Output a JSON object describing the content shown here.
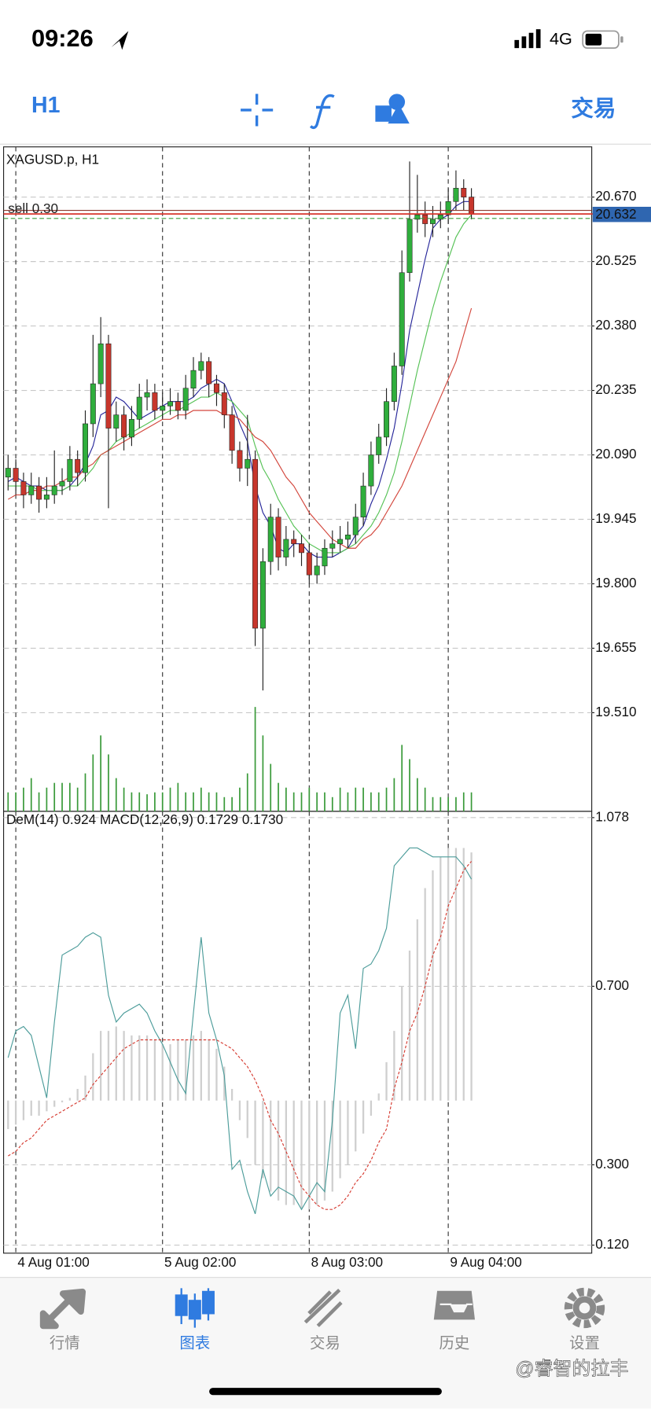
{
  "status_bar": {
    "time": "09:26",
    "network": "4G"
  },
  "toolbar": {
    "timeframe": "H1",
    "trade": "交易"
  },
  "chart_data": [
    {
      "type": "candlestick",
      "title": "XAGUSD.p, H1",
      "categories": [
        null,
        "4 Aug 01:00",
        null,
        null,
        null,
        null,
        null,
        null,
        null,
        null,
        null,
        null,
        null,
        null,
        null,
        null,
        null,
        null,
        null,
        null,
        "5 Aug 02:00",
        null,
        null,
        null,
        null,
        null,
        null,
        null,
        null,
        null,
        null,
        null,
        null,
        null,
        null,
        null,
        null,
        null,
        null,
        "8 Aug 03:00",
        null,
        null,
        null,
        null,
        null,
        null,
        null,
        null,
        null,
        null,
        null,
        null,
        null,
        null,
        null,
        null,
        null,
        "9 Aug 04:00",
        null,
        null,
        null
      ],
      "open": [
        20.04,
        20.06,
        20.03,
        20.0,
        20.02,
        19.99,
        20.0,
        20.02,
        20.03,
        20.08,
        20.05,
        20.16,
        20.25,
        20.34,
        20.15,
        20.18,
        20.13,
        20.17,
        20.22,
        20.23,
        20.19,
        20.2,
        20.21,
        20.19,
        20.24,
        20.28,
        20.3,
        20.25,
        20.23,
        20.18,
        20.1,
        20.06,
        20.08,
        19.7,
        19.85,
        19.95,
        19.86,
        19.9,
        19.89,
        19.87,
        19.82,
        19.84,
        19.88,
        19.89,
        19.9,
        19.91,
        19.95,
        20.02,
        20.09,
        20.13,
        20.21,
        20.29,
        20.5,
        20.62,
        20.63,
        20.61,
        20.62,
        20.63,
        20.66,
        20.69,
        20.67
      ],
      "high": [
        20.09,
        20.08,
        20.05,
        20.05,
        20.04,
        20.04,
        20.1,
        20.06,
        20.11,
        20.1,
        20.19,
        20.36,
        20.4,
        20.36,
        20.21,
        20.2,
        20.2,
        20.25,
        20.26,
        20.25,
        20.23,
        20.24,
        20.23,
        20.27,
        20.31,
        20.32,
        20.31,
        20.27,
        20.25,
        20.2,
        20.12,
        20.18,
        20.1,
        19.88,
        19.98,
        19.97,
        19.93,
        19.92,
        19.91,
        19.89,
        19.87,
        19.9,
        19.92,
        19.93,
        19.94,
        19.98,
        20.05,
        20.12,
        20.16,
        20.24,
        20.32,
        20.55,
        20.75,
        20.72,
        20.66,
        20.65,
        20.66,
        20.69,
        20.73,
        20.71,
        20.69
      ],
      "low": [
        20.01,
        20.0,
        19.97,
        19.98,
        19.96,
        19.97,
        19.98,
        20.0,
        20.01,
        20.02,
        20.03,
        20.13,
        20.22,
        19.97,
        20.12,
        20.1,
        20.11,
        20.15,
        20.19,
        20.17,
        20.17,
        20.18,
        20.17,
        20.17,
        20.22,
        20.26,
        20.22,
        20.2,
        20.15,
        20.07,
        20.03,
        20.02,
        19.66,
        19.56,
        19.82,
        19.83,
        19.84,
        19.86,
        19.84,
        19.8,
        19.8,
        19.82,
        19.86,
        19.87,
        19.88,
        19.89,
        19.93,
        20.0,
        20.07,
        20.11,
        20.19,
        20.27,
        20.48,
        20.59,
        20.58,
        20.58,
        20.6,
        20.61,
        20.64,
        20.64,
        20.62
      ],
      "close": [
        20.06,
        20.03,
        20.0,
        20.02,
        19.99,
        20.0,
        20.02,
        20.03,
        20.08,
        20.05,
        20.16,
        20.25,
        20.34,
        20.15,
        20.18,
        20.13,
        20.17,
        20.22,
        20.23,
        20.19,
        20.2,
        20.21,
        20.19,
        20.24,
        20.28,
        20.3,
        20.25,
        20.23,
        20.18,
        20.1,
        20.06,
        20.08,
        19.7,
        19.85,
        19.95,
        19.86,
        19.9,
        19.89,
        19.87,
        19.82,
        19.84,
        19.88,
        19.89,
        19.9,
        19.91,
        19.95,
        20.02,
        20.09,
        20.13,
        20.21,
        20.29,
        20.5,
        20.62,
        20.63,
        20.61,
        20.62,
        20.63,
        20.66,
        20.69,
        20.67,
        20.632
      ],
      "up_color": "#2fae3c",
      "down_color": "#c7362c",
      "wick_color": "#222222",
      "overlays": [
        {
          "color": "#26269a",
          "values": [
            20.03,
            20.04,
            20.03,
            20.02,
            20.02,
            20.01,
            20.01,
            20.01,
            20.02,
            20.04,
            20.07,
            20.11,
            20.18,
            20.19,
            20.22,
            20.21,
            20.19,
            20.17,
            20.18,
            20.19,
            20.2,
            20.21,
            20.21,
            20.21,
            20.22,
            20.24,
            20.25,
            20.26,
            20.25,
            20.21,
            20.16,
            20.12,
            20.02,
            19.96,
            19.93,
            19.88,
            19.87,
            19.89,
            19.89,
            19.87,
            19.86,
            19.86,
            19.86,
            19.87,
            19.88,
            19.91,
            19.93,
            19.98,
            20.02,
            20.08,
            20.15,
            20.25,
            20.37,
            20.45,
            20.53,
            20.6,
            20.62,
            20.63,
            20.65,
            20.66,
            20.66
          ]
        },
        {
          "color": "#56c256",
          "values": [
            20.02,
            20.02,
            20.02,
            20.02,
            20.01,
            20.01,
            20.01,
            20.01,
            20.02,
            20.02,
            20.04,
            20.06,
            20.09,
            20.1,
            20.12,
            20.13,
            20.14,
            20.15,
            20.16,
            20.17,
            20.18,
            20.19,
            20.19,
            20.2,
            20.21,
            20.22,
            20.22,
            20.23,
            20.22,
            20.21,
            20.19,
            20.17,
            20.11,
            20.06,
            20.03,
            19.99,
            19.96,
            19.93,
            19.91,
            19.89,
            19.88,
            19.87,
            19.87,
            19.87,
            19.88,
            19.89,
            19.91,
            19.93,
            19.96,
            20.0,
            20.05,
            20.12,
            20.2,
            20.28,
            20.35,
            20.42,
            20.48,
            20.53,
            20.58,
            20.61,
            20.63
          ]
        },
        {
          "color": "#d3463c",
          "values": [
            19.99,
            20.0,
            20.0,
            20.01,
            20.01,
            20.02,
            20.02,
            20.03,
            20.04,
            20.04,
            20.06,
            20.07,
            20.09,
            20.1,
            20.11,
            20.12,
            20.13,
            20.14,
            20.15,
            20.16,
            20.17,
            20.17,
            20.18,
            20.18,
            20.19,
            20.19,
            20.19,
            20.19,
            20.18,
            20.18,
            20.17,
            20.15,
            20.13,
            20.12,
            20.1,
            20.07,
            20.04,
            20.02,
            19.99,
            19.96,
            19.94,
            19.92,
            19.9,
            19.89,
            19.88,
            19.88,
            19.9,
            19.91,
            19.93,
            19.96,
            19.99,
            20.02,
            20.06,
            20.1,
            20.14,
            20.18,
            20.22,
            20.26,
            20.3,
            20.36,
            20.42
          ]
        }
      ],
      "volume": {
        "color": "#3a9a3a",
        "ylim": [
          0,
          700
        ],
        "values": [
          20,
          20,
          25,
          35,
          20,
          25,
          30,
          30,
          30,
          25,
          40,
          60,
          80,
          60,
          35,
          25,
          20,
          20,
          18,
          20,
          20,
          25,
          30,
          20,
          20,
          25,
          20,
          20,
          15,
          15,
          25,
          40,
          110,
          80,
          50,
          30,
          25,
          20,
          20,
          25,
          20,
          20,
          15,
          25,
          20,
          25,
          25,
          20,
          20,
          25,
          35,
          70,
          55,
          35,
          25,
          15,
          15,
          15,
          15,
          20,
          20
        ]
      },
      "order": {
        "label": "sell 0.30",
        "price": 20.64
      },
      "bid": 20.632,
      "bid_color": "#d8352b",
      "bid_label_color": "#2f66b0",
      "ask": 20.622,
      "ask_color": "#3a9a3a",
      "ylim": [
        19.288,
        20.783
      ],
      "yticks": [
        {
          "value": 20.67,
          "label": "20.670"
        },
        20.525,
        {
          "value": 20.38,
          "label": "20.380"
        },
        20.235,
        {
          "value": 20.09,
          "label": "20.090"
        },
        19.945,
        {
          "value": 19.8,
          "label": "19.800"
        },
        19.655,
        {
          "value": 19.51,
          "label": "19.510"
        }
      ],
      "grid": true
    },
    {
      "type": "indicator",
      "title": "DeM(14) 0.924 MACD(12,26,9) 0.1729 0.1730",
      "histogram": {
        "color": "#cfcfcf",
        "base": 0.444,
        "values": [
          0.38,
          0.39,
          0.4,
          0.41,
          0.41,
          0.42,
          0.43,
          0.44,
          0.45,
          0.47,
          0.5,
          0.55,
          0.6,
          0.6,
          0.61,
          0.6,
          0.59,
          0.59,
          0.59,
          0.58,
          0.57,
          0.57,
          0.58,
          0.58,
          0.59,
          0.6,
          0.58,
          0.56,
          0.52,
          0.47,
          0.4,
          0.36,
          0.3,
          0.27,
          0.24,
          0.22,
          0.21,
          0.21,
          0.2,
          0.2,
          0.21,
          0.22,
          0.24,
          0.27,
          0.3,
          0.33,
          0.37,
          0.41,
          0.46,
          0.53,
          0.6,
          0.7,
          0.78,
          0.85,
          0.92,
          0.96,
          0.99,
          1.01,
          1.01,
          1.01,
          1.0
        ]
      },
      "series": [
        {
          "color": "#4c9c9a",
          "dashed": false,
          "values": [
            0.54,
            0.6,
            0.61,
            0.59,
            0.52,
            0.45,
            0.62,
            0.77,
            0.78,
            0.79,
            0.81,
            0.82,
            0.81,
            0.68,
            0.62,
            0.64,
            0.65,
            0.66,
            0.64,
            0.6,
            0.57,
            0.53,
            0.49,
            0.46,
            0.64,
            0.81,
            0.64,
            0.58,
            0.5,
            0.29,
            0.31,
            0.24,
            0.19,
            0.29,
            0.23,
            0.25,
            0.24,
            0.23,
            0.2,
            0.23,
            0.26,
            0.24,
            0.4,
            0.64,
            0.68,
            0.56,
            0.74,
            0.75,
            0.78,
            0.83,
            0.97,
            0.99,
            1.01,
            1.01,
            1.0,
            0.99,
            0.99,
            0.99,
            0.99,
            0.97,
            0.94
          ]
        },
        {
          "color": "#d63a30",
          "dashed": true,
          "values": [
            0.32,
            0.33,
            0.35,
            0.36,
            0.38,
            0.4,
            0.41,
            0.42,
            0.43,
            0.44,
            0.45,
            0.48,
            0.5,
            0.52,
            0.54,
            0.56,
            0.57,
            0.58,
            0.58,
            0.58,
            0.58,
            0.58,
            0.58,
            0.58,
            0.58,
            0.58,
            0.58,
            0.58,
            0.57,
            0.56,
            0.54,
            0.52,
            0.49,
            0.45,
            0.4,
            0.37,
            0.33,
            0.29,
            0.25,
            0.23,
            0.21,
            0.2,
            0.2,
            0.21,
            0.23,
            0.26,
            0.28,
            0.31,
            0.35,
            0.38,
            0.47,
            0.53,
            0.6,
            0.64,
            0.7,
            0.77,
            0.81,
            0.88,
            0.92,
            0.96,
            0.98
          ]
        }
      ],
      "ylim": [
        0.102,
        1.092
      ],
      "yticks": [
        1.078,
        {
          "value": 0.7,
          "label": "0.700"
        },
        {
          "value": 0.3,
          "label": "0.300"
        },
        {
          "value": 0.12,
          "label": "0.120"
        }
      ],
      "grid": true
    }
  ],
  "nav": [
    {
      "label": "行情",
      "active": false
    },
    {
      "label": "图表",
      "active": true
    },
    {
      "label": "交易",
      "active": false
    },
    {
      "label": "历史",
      "active": false
    },
    {
      "label": "设置",
      "active": false
    }
  ],
  "watermark": "@睿智的拉丰"
}
